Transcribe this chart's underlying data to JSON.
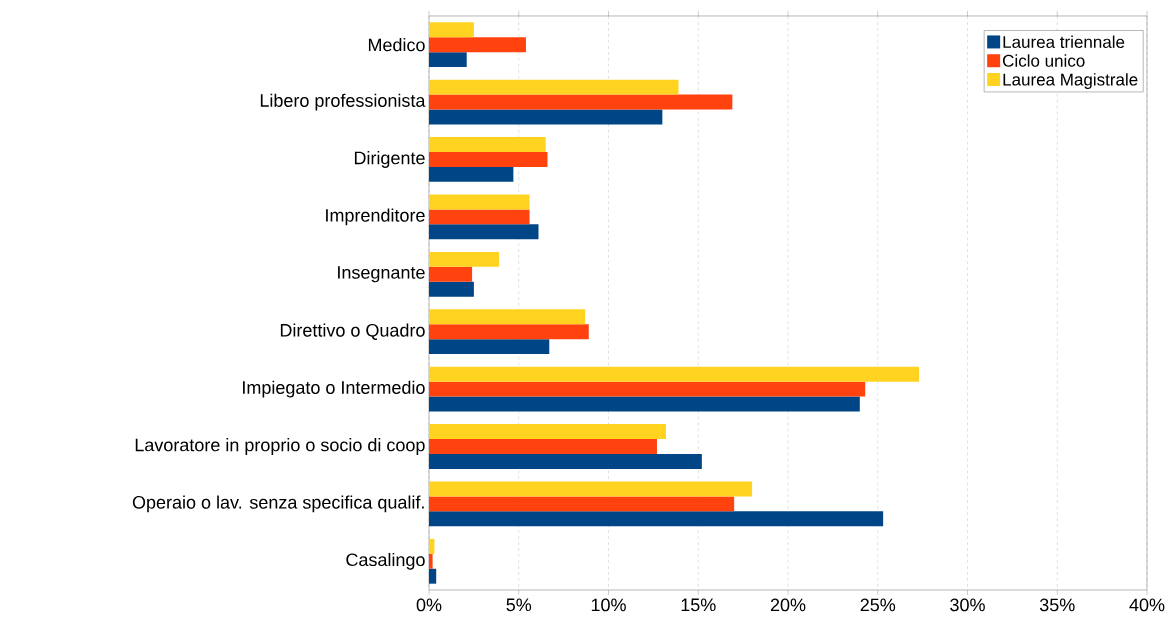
{
  "chart_data": {
    "type": "bar",
    "orientation": "horizontal",
    "categories": [
      "Medico",
      "Libero professionista",
      "Dirigente",
      "Imprenditore",
      "Insegnante",
      "Direttivo o Quadro",
      "Impiegato o Intermedio",
      "Lavoratore in proprio o socio di coop",
      "Operaio o lav. senza specifica qualif.",
      "Casalingo"
    ],
    "series": [
      {
        "name": "Laurea triennale",
        "color": "#004586",
        "values": [
          2.1,
          13.0,
          4.7,
          6.1,
          2.5,
          6.7,
          24.0,
          15.2,
          25.3,
          0.4
        ]
      },
      {
        "name": "Ciclo unico",
        "color": "#ff420e",
        "values": [
          5.4,
          16.9,
          6.6,
          5.6,
          2.4,
          8.9,
          24.3,
          12.7,
          17.0,
          0.2
        ]
      },
      {
        "name": "Laurea Magistrale",
        "color": "#ffd320",
        "values": [
          2.5,
          13.9,
          6.5,
          5.6,
          3.9,
          8.7,
          27.3,
          13.2,
          18.0,
          0.3
        ]
      }
    ],
    "xlim": [
      0,
      40
    ],
    "xticks": [
      {
        "value": 0,
        "label": "0%"
      },
      {
        "value": 5,
        "label": "5%"
      },
      {
        "value": 10,
        "label": "10%"
      },
      {
        "value": 15,
        "label": "15%"
      },
      {
        "value": 20,
        "label": "20%"
      },
      {
        "value": 25,
        "label": "25%"
      },
      {
        "value": 30,
        "label": "30%"
      },
      {
        "value": 35,
        "label": "35%"
      },
      {
        "value": 40,
        "label": "40%"
      }
    ],
    "grid": "x",
    "legend": "top right"
  }
}
